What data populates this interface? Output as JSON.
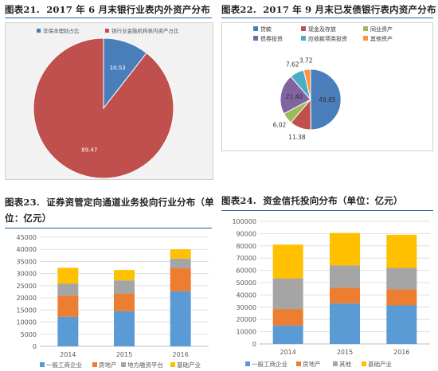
{
  "figures": {
    "f21": {
      "label": "图表21.",
      "title": "2017 年 6 月末银行业表内外资产分布"
    },
    "f22": {
      "label": "图表22.",
      "title": "2017 年 9 月末已发债银行表内资产分布"
    },
    "f23": {
      "label": "图表23.",
      "title": "证券资管定向通道业务投向行业分布（单",
      "title_line2": "位：亿元）"
    },
    "f24": {
      "label": "图表24.",
      "title": "资金信托投向分布（单位：亿元）"
    }
  },
  "chart_data": [
    {
      "id": "f21",
      "type": "pie",
      "slices": [
        {
          "name": "非保本理财占比",
          "value": 10.53,
          "label": "10.53",
          "color": "#4a7ebb"
        },
        {
          "name": "银行业金融机构表内资产占比",
          "value": 89.47,
          "label": "89.47",
          "color": "#c0504d"
        }
      ],
      "legend": "top",
      "background": "#f2f2f2"
    },
    {
      "id": "f22",
      "type": "pie",
      "slices": [
        {
          "name": "贷款",
          "value": 49.85,
          "label": "49.85",
          "color": "#4a7ebb"
        },
        {
          "name": "现金及存放",
          "value": 11.38,
          "label": "11.38",
          "color": "#c0504d"
        },
        {
          "name": "同业资产",
          "value": 6.02,
          "label": "6.02",
          "color": "#9bbb59"
        },
        {
          "name": "债券投资",
          "value": 21.4,
          "label": "21.40",
          "color": "#8064a2"
        },
        {
          "name": "应收款项类投资",
          "value": 7.62,
          "label": "7.62",
          "color": "#4bacc6"
        },
        {
          "name": "其他资产",
          "value": 3.72,
          "label": "3.72",
          "color": "#f79646"
        }
      ],
      "legend": "top"
    },
    {
      "id": "f23",
      "type": "bar",
      "stacked": true,
      "categories": [
        "2014",
        "2015",
        "2016"
      ],
      "series": [
        {
          "name": "一般工商企业",
          "values": [
            12200,
            14500,
            22700
          ],
          "color": "#5b9bd5"
        },
        {
          "name": "房地产",
          "values": [
            8700,
            7200,
            9500
          ],
          "color": "#ed7d31"
        },
        {
          "name": "地方融资平台",
          "values": [
            5000,
            5500,
            4000
          ],
          "color": "#a5a5a5"
        },
        {
          "name": "基础产业",
          "values": [
            6500,
            4300,
            3800
          ],
          "color": "#ffc000"
        }
      ],
      "ylim": [
        0,
        45000
      ],
      "yticks": [
        "0",
        "5000",
        "10000",
        "15000",
        "20000",
        "25000",
        "30000",
        "35000",
        "40000",
        "45000"
      ],
      "legend": "bottom",
      "grid": true
    },
    {
      "id": "f24",
      "type": "bar",
      "stacked": true,
      "categories": [
        "2014",
        "2015",
        "2016"
      ],
      "series": [
        {
          "name": "一般工商企业",
          "values": [
            15000,
            33000,
            31500
          ],
          "color": "#5b9bd5"
        },
        {
          "name": "房地产",
          "values": [
            13500,
            13000,
            13000
          ],
          "color": "#ed7d31"
        },
        {
          "name": "其他",
          "values": [
            25000,
            18000,
            17500
          ],
          "color": "#a5a5a5"
        },
        {
          "name": "基础产业",
          "values": [
            27500,
            26500,
            27000
          ],
          "color": "#ffc000"
        }
      ],
      "ylim": [
        0,
        100000
      ],
      "yticks": [
        "0",
        "10000",
        "20000",
        "30000",
        "40000",
        "50000",
        "60000",
        "70000",
        "80000",
        "90000",
        "100000"
      ],
      "legend": "bottom",
      "grid": true
    }
  ]
}
